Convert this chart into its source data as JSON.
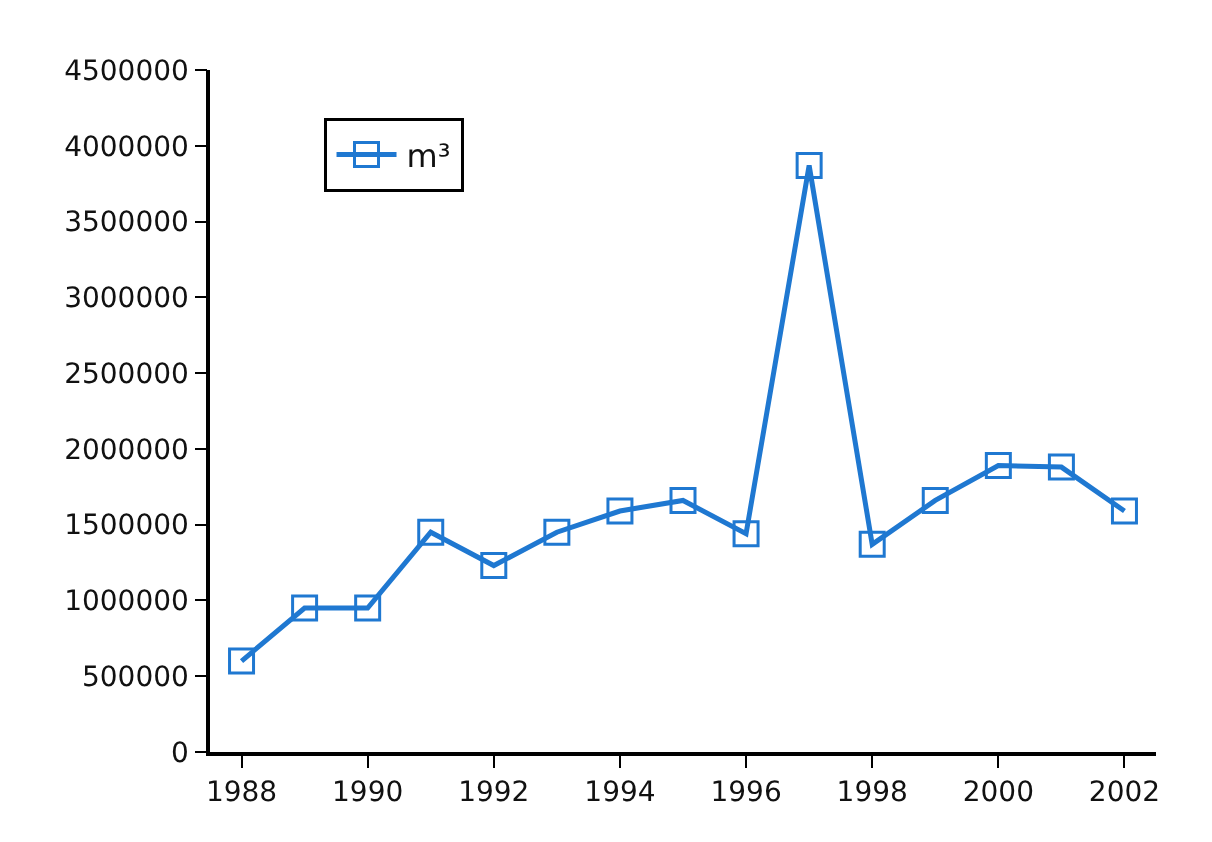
{
  "chart_data": {
    "type": "line",
    "categories": [
      "1988",
      null,
      "1990",
      null,
      "1992",
      null,
      "1994",
      null,
      "1996",
      null,
      "1998",
      null,
      "2000",
      null,
      "2002"
    ],
    "series": [
      {
        "name": "m³",
        "color": "#1f78d1",
        "values": [
          600000,
          950000,
          950000,
          1450000,
          1230000,
          1450000,
          1590000,
          1660000,
          1440000,
          3870000,
          1370000,
          1660000,
          1890000,
          1880000,
          1590000
        ]
      }
    ],
    "ylim": [
      0,
      4500000
    ],
    "yticks": [
      0,
      500000,
      1000000,
      1500000,
      2000000,
      2500000,
      3000000,
      3500000,
      4000000,
      4500000
    ],
    "grid": false,
    "legend": "top left",
    "marker": "square",
    "line_style": "solid"
  }
}
